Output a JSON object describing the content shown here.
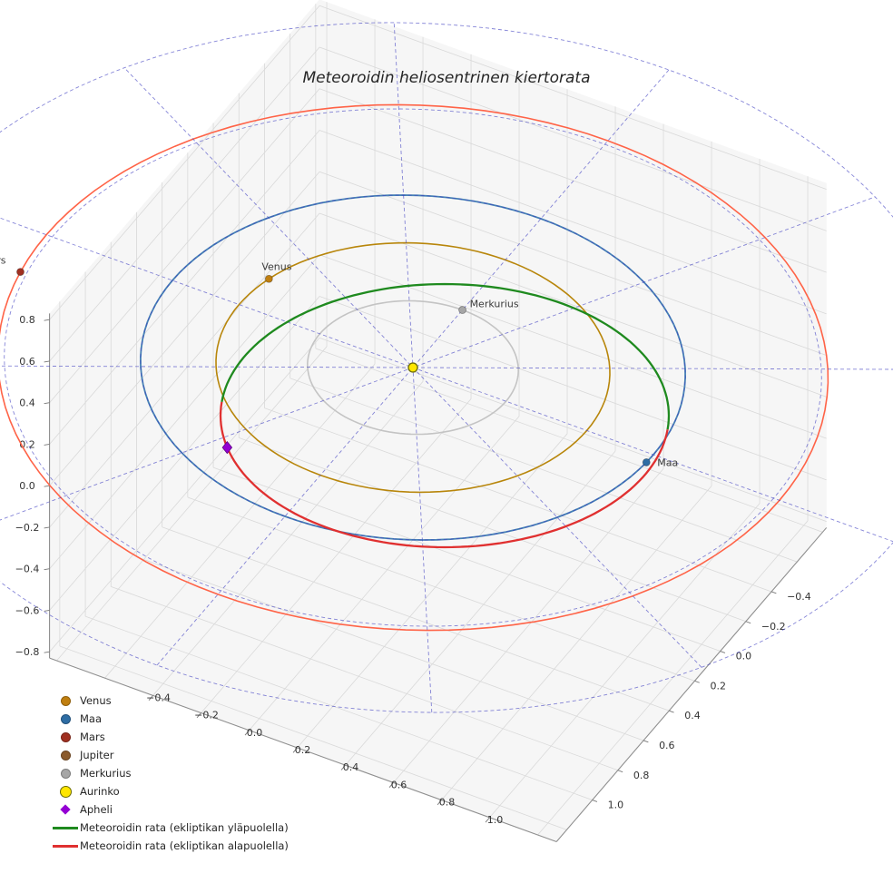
{
  "title": "Meteoroidin heliosentrinen kiertorata",
  "chart_data": {
    "type": "line",
    "projection": "3d",
    "title": "Meteoroidin heliosentrinen kiertorata",
    "axes": {
      "x_tick_values": [
        -0.4,
        -0.2,
        0.0,
        0.2,
        0.4,
        0.6,
        0.8,
        1.0
      ],
      "x_tick_labels": [
        "−0.4",
        "−0.2",
        "0.0",
        "0.2",
        "0.4",
        "0.6",
        "0.8",
        "1.0"
      ],
      "y_tick_values": [
        -0.4,
        -0.2,
        0.0,
        0.2,
        0.4,
        0.6,
        0.8,
        1.0
      ],
      "y_tick_labels": [
        "−0.4",
        "−0.2",
        "0.0",
        "0.2",
        "0.4",
        "0.6",
        "0.8",
        "1.0"
      ],
      "z_tick_values": [
        -0.8,
        -0.6,
        -0.4,
        -0.2,
        0.0,
        0.2,
        0.4,
        0.6,
        0.8
      ],
      "z_tick_labels": [
        "−0.8",
        "−0.6",
        "−0.4",
        "−0.2",
        "0.0",
        "0.2",
        "0.4",
        "0.6",
        "0.8"
      ],
      "grid": true
    },
    "polar_grid": {
      "rings_au": [
        1.0,
        1.5,
        2.0
      ],
      "spoke_step_deg": 30,
      "max_radius_au": 2.0,
      "color": "#3c3cc0"
    },
    "planet_orbits": [
      {
        "name": "Merkurius",
        "radius_au": 0.387,
        "color": "#c4c4c4"
      },
      {
        "name": "Venus",
        "radius_au": 0.723,
        "color": "#b8860b"
      },
      {
        "name": "Maa",
        "radius_au": 1.0,
        "color": "#4682b4"
      },
      {
        "name": "Mars",
        "radius_au": 1.524,
        "color": "#ff6347"
      }
    ],
    "bodies": [
      {
        "name": "Merkurius",
        "radius_au": 0.387,
        "longitude_deg": 270,
        "color": "#a6a6a6"
      },
      {
        "name": "Venus",
        "radius_au": 0.723,
        "longitude_deg": 195,
        "color": "#c07f10"
      },
      {
        "name": "Maa",
        "radius_au": 1.0,
        "longitude_deg": 3,
        "color": "#2e6da4"
      },
      {
        "name": "Mars",
        "radius_au": 1.524,
        "longitude_deg": 171,
        "color": "#a03021"
      }
    ],
    "sun": {
      "name": "Aurinko",
      "color": "#ffe600",
      "edge_color": "#6b6b00"
    },
    "meteoroid_orbit": {
      "above": {
        "label": "Meteoroidin rata (ekliptikan yläpuolella)",
        "color": "#1f8a1f"
      },
      "below": {
        "label": "Meteoroidin rata (ekliptikan alapuolella)",
        "color": "#e03030"
      },
      "aphelion": {
        "label": "Apheli",
        "color": "#9400d3"
      },
      "approx_elements": {
        "semi_major_axis_au": 0.85,
        "eccentricity": 0.15,
        "inclination_deg": 14
      }
    },
    "legend_items": [
      {
        "label": "Venus",
        "marker": "dot",
        "color": "#c07f10"
      },
      {
        "label": "Maa",
        "marker": "dot",
        "color": "#2e6da4"
      },
      {
        "label": "Mars",
        "marker": "dot",
        "color": "#a03021"
      },
      {
        "label": "Jupiter",
        "marker": "dot",
        "color": "#8b5a2b"
      },
      {
        "label": "Merkurius",
        "marker": "dot",
        "color": "#a6a6a6"
      },
      {
        "label": "Aurinko",
        "marker": "sun",
        "color": "#ffe600"
      },
      {
        "label": "Apheli",
        "marker": "diamond",
        "color": "#9400d3"
      },
      {
        "label": "Meteoroidin rata (ekliptikan yläpuolella)",
        "marker": "line",
        "color": "#1f8a1f"
      },
      {
        "label": "Meteoroidin rata (ekliptikan alapuolella)",
        "marker": "line",
        "color": "#e03030"
      }
    ]
  }
}
